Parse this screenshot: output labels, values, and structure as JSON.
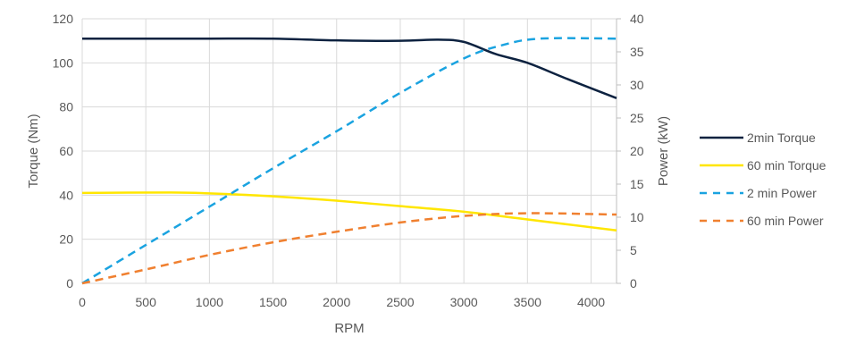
{
  "chart_data": {
    "type": "line",
    "title": "",
    "xlabel": "RPM",
    "ylabel": "Torque (Nm)",
    "y2label": "Power (kW)",
    "xlim": [
      0,
      4200
    ],
    "ylim": [
      0,
      120
    ],
    "y2lim": [
      0,
      40
    ],
    "xticks": [
      0,
      500,
      1000,
      1500,
      2000,
      2500,
      3000,
      3500,
      4000
    ],
    "yticks": [
      0,
      20,
      40,
      60,
      80,
      100,
      120
    ],
    "y2ticks": [
      0,
      5,
      10,
      15,
      20,
      25,
      30,
      35,
      40
    ],
    "grid": true,
    "legend_position": "right",
    "series": [
      {
        "name": "2min Torque",
        "axis": "left",
        "color": "#0d2240",
        "dash": false,
        "x": [
          0,
          500,
          1000,
          1500,
          2000,
          2500,
          2800,
          3000,
          3250,
          3500,
          3800,
          4200
        ],
        "y": [
          111,
          111,
          111,
          111,
          110.2,
          110,
          110.5,
          109.5,
          104,
          100,
          93,
          84
        ]
      },
      {
        "name": "60 min Torque",
        "axis": "left",
        "color": "#ffe600",
        "dash": false,
        "x": [
          0,
          700,
          1000,
          1500,
          2000,
          2500,
          3000,
          3500,
          4200
        ],
        "y": [
          41,
          41.2,
          40.8,
          39.5,
          37.5,
          35,
          32.5,
          29,
          24
        ]
      },
      {
        "name": "2 min Power",
        "axis": "right",
        "color": "#1aa3e0",
        "dash": true,
        "x": [
          0,
          500,
          1000,
          1500,
          2000,
          2500,
          3000,
          3300,
          3600,
          4200
        ],
        "y": [
          0,
          5.8,
          11.6,
          17.4,
          23,
          28.8,
          34,
          36,
          37,
          37
        ]
      },
      {
        "name": "60 min Power",
        "axis": "right",
        "color": "#f08030",
        "dash": true,
        "x": [
          0,
          500,
          1000,
          1500,
          2000,
          2500,
          3000,
          3500,
          4200
        ],
        "y": [
          0,
          2.1,
          4.3,
          6.2,
          7.8,
          9.2,
          10.2,
          10.6,
          10.4
        ]
      }
    ]
  }
}
